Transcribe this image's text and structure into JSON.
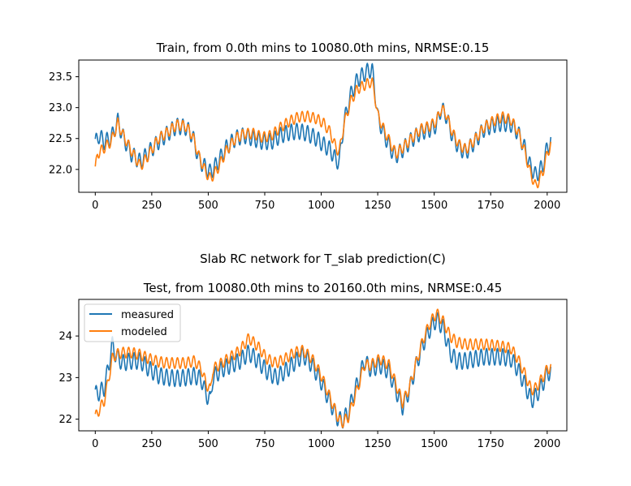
{
  "figure": {
    "suptitle": "Slab RC network for T_slab prediction(C)"
  },
  "colors": {
    "measured": "#1f77b4",
    "modeled": "#ff7f0e",
    "axes": "#000000"
  },
  "chart_data": [
    {
      "type": "line",
      "title": "Train, from 0.0th mins to 10080.0th mins, NRMSE:0.15",
      "xlabel": "",
      "ylabel": "",
      "xlim": [
        -73,
        2087
      ],
      "ylim": [
        21.63,
        23.77
      ],
      "xticks": [
        0,
        250,
        500,
        750,
        1000,
        1250,
        1500,
        1750,
        2000
      ],
      "yticks": [
        22.0,
        22.5,
        23.0,
        23.5
      ],
      "ytick_labels": [
        "22.0",
        "22.5",
        "23.0",
        "23.5"
      ],
      "grid": false,
      "legend": null,
      "oscillation": {
        "period_samples": 24,
        "measured_amplitude": 0.13,
        "modeled_amplitude": 0.085
      },
      "series": [
        {
          "name": "measured",
          "key": "measured",
          "points": [
            [
              0,
              22.42
            ],
            [
              15,
              22.55
            ],
            [
              40,
              22.45
            ],
            [
              70,
              22.5
            ],
            [
              100,
              22.78
            ],
            [
              120,
              22.55
            ],
            [
              160,
              22.25
            ],
            [
              200,
              22.12
            ],
            [
              230,
              22.25
            ],
            [
              280,
              22.45
            ],
            [
              320,
              22.58
            ],
            [
              360,
              22.7
            ],
            [
              400,
              22.68
            ],
            [
              430,
              22.55
            ],
            [
              460,
              22.15
            ],
            [
              490,
              22.02
            ],
            [
              510,
              21.95
            ],
            [
              540,
              22.1
            ],
            [
              580,
              22.35
            ],
            [
              620,
              22.5
            ],
            [
              660,
              22.55
            ],
            [
              700,
              22.5
            ],
            [
              740,
              22.45
            ],
            [
              780,
              22.45
            ],
            [
              820,
              22.55
            ],
            [
              860,
              22.6
            ],
            [
              900,
              22.62
            ],
            [
              940,
              22.58
            ],
            [
              980,
              22.5
            ],
            [
              1010,
              22.4
            ],
            [
              1040,
              22.32
            ],
            [
              1065,
              22.15
            ],
            [
              1080,
              22.12
            ],
            [
              1100,
              22.75
            ],
            [
              1130,
              23.2
            ],
            [
              1160,
              23.45
            ],
            [
              1200,
              23.58
            ],
            [
              1225,
              23.62
            ],
            [
              1235,
              23.35
            ],
            [
              1250,
              22.85
            ],
            [
              1280,
              22.55
            ],
            [
              1310,
              22.32
            ],
            [
              1330,
              22.22
            ],
            [
              1360,
              22.32
            ],
            [
              1400,
              22.48
            ],
            [
              1440,
              22.6
            ],
            [
              1480,
              22.65
            ],
            [
              1510,
              22.72
            ],
            [
              1530,
              22.98
            ],
            [
              1550,
              22.9
            ],
            [
              1580,
              22.55
            ],
            [
              1610,
              22.35
            ],
            [
              1640,
              22.28
            ],
            [
              1680,
              22.45
            ],
            [
              1720,
              22.65
            ],
            [
              1760,
              22.72
            ],
            [
              1800,
              22.75
            ],
            [
              1840,
              22.73
            ],
            [
              1870,
              22.6
            ],
            [
              1900,
              22.35
            ],
            [
              1925,
              22.05
            ],
            [
              1950,
              21.9
            ],
            [
              1980,
              22.05
            ],
            [
              2000,
              22.35
            ],
            [
              2016,
              22.45
            ]
          ]
        },
        {
          "name": "modeled",
          "key": "modeled",
          "points": [
            [
              0,
              22.0
            ],
            [
              10,
              22.25
            ],
            [
              40,
              22.35
            ],
            [
              70,
              22.45
            ],
            [
              100,
              22.75
            ],
            [
              120,
              22.58
            ],
            [
              160,
              22.3
            ],
            [
              200,
              22.05
            ],
            [
              230,
              22.2
            ],
            [
              280,
              22.5
            ],
            [
              320,
              22.6
            ],
            [
              360,
              22.72
            ],
            [
              400,
              22.7
            ],
            [
              430,
              22.55
            ],
            [
              460,
              22.2
            ],
            [
              490,
              21.95
            ],
            [
              510,
              21.85
            ],
            [
              540,
              22.0
            ],
            [
              580,
              22.3
            ],
            [
              620,
              22.5
            ],
            [
              660,
              22.58
            ],
            [
              700,
              22.58
            ],
            [
              740,
              22.52
            ],
            [
              780,
              22.55
            ],
            [
              820,
              22.68
            ],
            [
              860,
              22.78
            ],
            [
              900,
              22.85
            ],
            [
              940,
              22.86
            ],
            [
              980,
              22.82
            ],
            [
              1010,
              22.75
            ],
            [
              1040,
              22.6
            ],
            [
              1065,
              22.35
            ],
            [
              1080,
              22.28
            ],
            [
              1100,
              22.72
            ],
            [
              1130,
              23.1
            ],
            [
              1160,
              23.3
            ],
            [
              1200,
              23.38
            ],
            [
              1225,
              23.42
            ],
            [
              1235,
              23.25
            ],
            [
              1250,
              22.88
            ],
            [
              1280,
              22.62
            ],
            [
              1310,
              22.4
            ],
            [
              1330,
              22.25
            ],
            [
              1360,
              22.35
            ],
            [
              1400,
              22.5
            ],
            [
              1440,
              22.65
            ],
            [
              1480,
              22.7
            ],
            [
              1510,
              22.78
            ],
            [
              1530,
              22.98
            ],
            [
              1550,
              22.92
            ],
            [
              1580,
              22.6
            ],
            [
              1610,
              22.4
            ],
            [
              1640,
              22.32
            ],
            [
              1680,
              22.48
            ],
            [
              1720,
              22.68
            ],
            [
              1760,
              22.78
            ],
            [
              1800,
              22.85
            ],
            [
              1840,
              22.8
            ],
            [
              1870,
              22.62
            ],
            [
              1900,
              22.3
            ],
            [
              1925,
              21.95
            ],
            [
              1950,
              21.72
            ],
            [
              1980,
              21.95
            ],
            [
              2000,
              22.25
            ],
            [
              2016,
              22.4
            ]
          ]
        }
      ]
    },
    {
      "type": "line",
      "title": "Test, from 10080.0th mins to 20160.0th mins, NRMSE:0.45",
      "xlabel": "",
      "ylabel": "",
      "xlim": [
        -73,
        2087
      ],
      "ylim": [
        21.72,
        24.88
      ],
      "xticks": [
        0,
        250,
        500,
        750,
        1000,
        1250,
        1500,
        1750,
        2000
      ],
      "yticks": [
        22,
        23,
        24
      ],
      "ytick_labels": [
        "22",
        "23",
        "24"
      ],
      "grid": false,
      "legend": "upper left",
      "oscillation": {
        "period_samples": 24,
        "measured_amplitude": 0.2,
        "modeled_amplitude": 0.13
      },
      "series": [
        {
          "name": "measured",
          "key": "measured",
          "points": [
            [
              0,
              22.6
            ],
            [
              20,
              22.65
            ],
            [
              40,
              22.75
            ],
            [
              60,
              23.3
            ],
            [
              75,
              23.8
            ],
            [
              90,
              23.55
            ],
            [
              120,
              23.35
            ],
            [
              160,
              23.4
            ],
            [
              200,
              23.4
            ],
            [
              240,
              23.2
            ],
            [
              280,
              23.05
            ],
            [
              320,
              23.0
            ],
            [
              360,
              22.98
            ],
            [
              400,
              23.0
            ],
            [
              440,
              23.05
            ],
            [
              470,
              22.95
            ],
            [
              490,
              22.6
            ],
            [
              510,
              22.45
            ],
            [
              520,
              23.0
            ],
            [
              560,
              23.2
            ],
            [
              600,
              23.3
            ],
            [
              640,
              23.4
            ],
            [
              680,
              23.6
            ],
            [
              720,
              23.4
            ],
            [
              760,
              23.15
            ],
            [
              800,
              23.0
            ],
            [
              840,
              23.15
            ],
            [
              880,
              23.35
            ],
            [
              920,
              23.55
            ],
            [
              960,
              23.3
            ],
            [
              1000,
              22.9
            ],
            [
              1040,
              22.4
            ],
            [
              1070,
              22.05
            ],
            [
              1090,
              21.95
            ],
            [
              1120,
              22.15
            ],
            [
              1140,
              22.55
            ],
            [
              1170,
              23.0
            ],
            [
              1190,
              23.4
            ],
            [
              1220,
              23.2
            ],
            [
              1260,
              23.3
            ],
            [
              1300,
              23.15
            ],
            [
              1330,
              22.7
            ],
            [
              1360,
              22.3
            ],
            [
              1390,
              22.7
            ],
            [
              1420,
              23.3
            ],
            [
              1450,
              23.8
            ],
            [
              1480,
              24.15
            ],
            [
              1510,
              24.4
            ],
            [
              1540,
              24.2
            ],
            [
              1570,
              23.6
            ],
            [
              1600,
              23.4
            ],
            [
              1640,
              23.4
            ],
            [
              1680,
              23.45
            ],
            [
              1720,
              23.5
            ],
            [
              1760,
              23.5
            ],
            [
              1800,
              23.5
            ],
            [
              1840,
              23.45
            ],
            [
              1870,
              23.2
            ],
            [
              1900,
              22.85
            ],
            [
              1930,
              22.45
            ],
            [
              1950,
              22.55
            ],
            [
              1980,
              22.85
            ],
            [
              2000,
              23.1
            ],
            [
              2016,
              23.15
            ]
          ]
        },
        {
          "name": "modeled",
          "key": "modeled",
          "points": [
            [
              0,
              22.05
            ],
            [
              15,
              22.2
            ],
            [
              40,
              22.45
            ],
            [
              60,
              23.0
            ],
            [
              75,
              23.45
            ],
            [
              90,
              23.55
            ],
            [
              120,
              23.6
            ],
            [
              160,
              23.6
            ],
            [
              200,
              23.55
            ],
            [
              240,
              23.45
            ],
            [
              280,
              23.38
            ],
            [
              320,
              23.35
            ],
            [
              360,
              23.35
            ],
            [
              400,
              23.35
            ],
            [
              440,
              23.4
            ],
            [
              470,
              23.2
            ],
            [
              490,
              22.85
            ],
            [
              510,
              22.7
            ],
            [
              520,
              23.2
            ],
            [
              560,
              23.35
            ],
            [
              600,
              23.5
            ],
            [
              640,
              23.65
            ],
            [
              680,
              23.95
            ],
            [
              720,
              23.75
            ],
            [
              760,
              23.45
            ],
            [
              800,
              23.35
            ],
            [
              840,
              23.45
            ],
            [
              880,
              23.6
            ],
            [
              920,
              23.65
            ],
            [
              960,
              23.45
            ],
            [
              1000,
              23.05
            ],
            [
              1040,
              22.5
            ],
            [
              1070,
              22.1
            ],
            [
              1090,
              21.9
            ],
            [
              1120,
              22.05
            ],
            [
              1140,
              22.4
            ],
            [
              1170,
              22.9
            ],
            [
              1190,
              23.3
            ],
            [
              1220,
              23.3
            ],
            [
              1260,
              23.45
            ],
            [
              1300,
              23.3
            ],
            [
              1330,
              22.85
            ],
            [
              1360,
              22.4
            ],
            [
              1390,
              22.75
            ],
            [
              1420,
              23.35
            ],
            [
              1450,
              23.9
            ],
            [
              1480,
              24.3
            ],
            [
              1510,
              24.55
            ],
            [
              1540,
              24.35
            ],
            [
              1570,
              24.0
            ],
            [
              1600,
              23.85
            ],
            [
              1640,
              23.8
            ],
            [
              1680,
              23.8
            ],
            [
              1720,
              23.8
            ],
            [
              1760,
              23.78
            ],
            [
              1800,
              23.75
            ],
            [
              1840,
              23.7
            ],
            [
              1870,
              23.45
            ],
            [
              1900,
              23.1
            ],
            [
              1930,
              22.7
            ],
            [
              1950,
              22.75
            ],
            [
              1980,
              23.0
            ],
            [
              2000,
              23.2
            ],
            [
              2016,
              23.25
            ]
          ]
        }
      ]
    }
  ]
}
